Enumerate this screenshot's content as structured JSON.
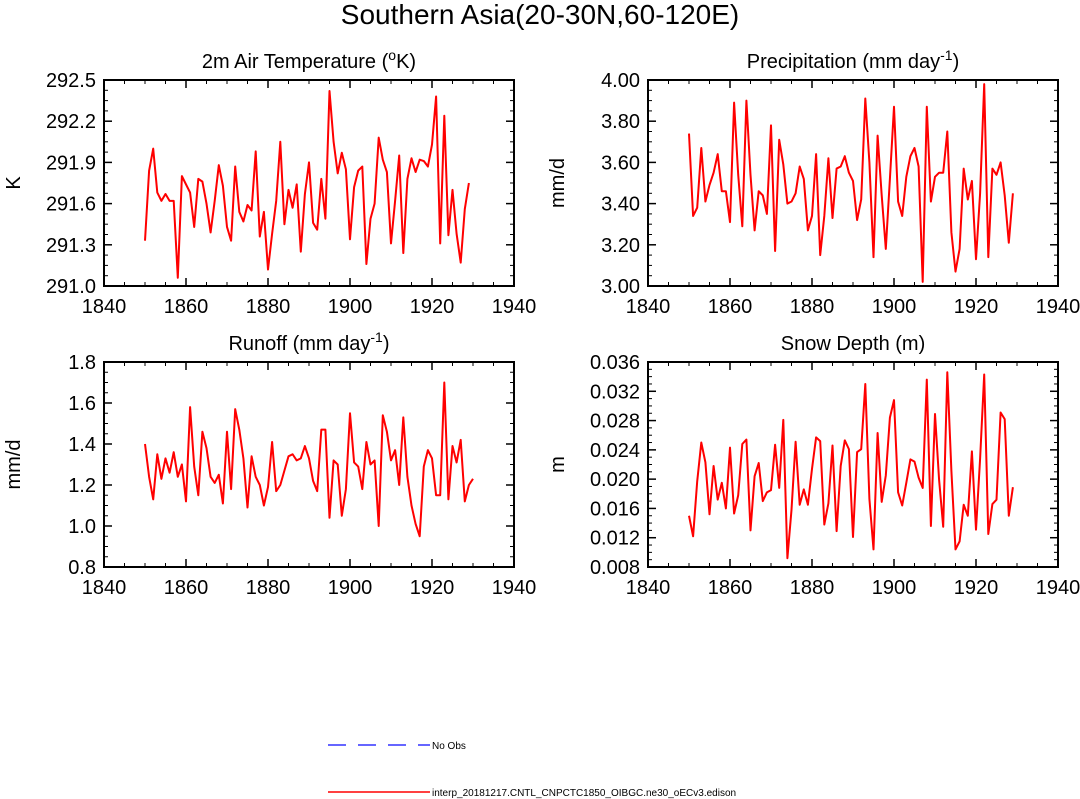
{
  "main_title": "Southern Asia(20-30N,60-120E)",
  "legend": [
    {
      "label": "No Obs",
      "color": "#3333ff",
      "dash": "dashed"
    },
    {
      "label": "interp_20181217.CNTL_CNPCTC1850_OIBGC.ne30_oECv3.edison",
      "color": "#ff0000",
      "dash": "solid"
    }
  ],
  "chart_data": [
    {
      "type": "line",
      "title": "2m Air Temperature (",
      "title_sup": "o",
      "title_tail": "K)",
      "ylabel": "K",
      "xlim": [
        1840,
        1940
      ],
      "xticks": [
        1840,
        1860,
        1880,
        1900,
        1920,
        1940
      ],
      "ylim": [
        291.0,
        292.5
      ],
      "yticks": [
        "291.0",
        "291.3",
        "291.6",
        "291.9",
        "292.2",
        "292.5"
      ],
      "x_start": 1850,
      "series": [
        {
          "name": "model",
          "color": "#ff0000",
          "values": [
            291.33,
            291.84,
            292.0,
            291.68,
            291.62,
            291.67,
            291.62,
            291.62,
            291.06,
            291.8,
            291.74,
            291.68,
            291.43,
            291.78,
            291.76,
            291.6,
            291.39,
            291.62,
            291.88,
            291.73,
            291.43,
            291.33,
            291.87,
            291.54,
            291.47,
            291.59,
            291.55,
            291.98,
            291.36,
            291.54,
            291.12,
            291.38,
            291.62,
            292.05,
            291.45,
            291.7,
            291.57,
            291.74,
            291.25,
            291.67,
            291.9,
            291.46,
            291.41,
            291.78,
            291.49,
            292.42,
            292.05,
            291.82,
            291.97,
            291.85,
            291.34,
            291.72,
            291.84,
            291.87,
            291.16,
            291.49,
            291.6,
            292.08,
            291.92,
            291.83,
            291.31,
            291.62,
            291.95,
            291.24,
            291.78,
            291.93,
            291.83,
            291.92,
            291.91,
            291.87,
            292.03,
            292.38,
            291.31,
            292.24,
            291.37,
            291.7,
            291.38,
            291.17,
            291.56,
            291.75
          ]
        }
      ]
    },
    {
      "type": "line",
      "title": "Precipitation (mm day",
      "title_sup": "-1",
      "title_tail": ")",
      "ylabel": "mm/d",
      "xlim": [
        1840,
        1940
      ],
      "xticks": [
        1840,
        1860,
        1880,
        1900,
        1920,
        1940
      ],
      "ylim": [
        3.0,
        4.0
      ],
      "yticks": [
        "3.00",
        "3.20",
        "3.40",
        "3.60",
        "3.80",
        "4.00"
      ],
      "x_start": 1850,
      "series": [
        {
          "name": "model",
          "color": "#ff0000",
          "values": [
            3.74,
            3.34,
            3.38,
            3.67,
            3.41,
            3.49,
            3.55,
            3.64,
            3.46,
            3.46,
            3.31,
            3.89,
            3.54,
            3.29,
            3.9,
            3.54,
            3.27,
            3.46,
            3.44,
            3.35,
            3.78,
            3.17,
            3.71,
            3.59,
            3.4,
            3.41,
            3.45,
            3.58,
            3.52,
            3.27,
            3.34,
            3.64,
            3.15,
            3.34,
            3.62,
            3.33,
            3.57,
            3.58,
            3.63,
            3.55,
            3.51,
            3.32,
            3.42,
            3.91,
            3.6,
            3.14,
            3.73,
            3.44,
            3.18,
            3.52,
            3.87,
            3.41,
            3.34,
            3.53,
            3.63,
            3.67,
            3.58,
            3.02,
            3.87,
            3.41,
            3.53,
            3.55,
            3.55,
            3.75,
            3.26,
            3.07,
            3.18,
            3.57,
            3.42,
            3.51,
            3.13,
            3.45,
            3.98,
            3.14,
            3.57,
            3.54,
            3.6,
            3.44,
            3.21,
            3.45
          ]
        }
      ]
    },
    {
      "type": "line",
      "title": "Runoff (mm day",
      "title_sup": "-1",
      "title_tail": ")",
      "ylabel": "mm/d",
      "xlim": [
        1840,
        1940
      ],
      "xticks": [
        1840,
        1860,
        1880,
        1900,
        1920,
        1940
      ],
      "ylim": [
        0.8,
        1.8
      ],
      "yticks": [
        "0.8",
        "1.0",
        "1.2",
        "1.4",
        "1.6",
        "1.8"
      ],
      "x_start": 1850,
      "series": [
        {
          "name": "model",
          "color": "#ff0000",
          "values": [
            1.4,
            1.24,
            1.13,
            1.35,
            1.23,
            1.33,
            1.26,
            1.36,
            1.24,
            1.3,
            1.12,
            1.58,
            1.29,
            1.15,
            1.46,
            1.38,
            1.24,
            1.21,
            1.25,
            1.11,
            1.46,
            1.18,
            1.57,
            1.47,
            1.33,
            1.09,
            1.34,
            1.24,
            1.2,
            1.1,
            1.19,
            1.41,
            1.17,
            1.2,
            1.27,
            1.34,
            1.35,
            1.32,
            1.33,
            1.39,
            1.33,
            1.22,
            1.17,
            1.47,
            1.47,
            1.04,
            1.32,
            1.3,
            1.05,
            1.18,
            1.55,
            1.31,
            1.29,
            1.18,
            1.41,
            1.3,
            1.32,
            1.0,
            1.54,
            1.46,
            1.32,
            1.37,
            1.2,
            1.53,
            1.24,
            1.1,
            1.01,
            0.95,
            1.29,
            1.37,
            1.33,
            1.15,
            1.15,
            1.7,
            1.13,
            1.39,
            1.31,
            1.42,
            1.12,
            1.2,
            1.23
          ]
        }
      ]
    },
    {
      "type": "line",
      "title": "Snow Depth (m)",
      "title_sup": "",
      "title_tail": "",
      "ylabel": "m",
      "xlim": [
        1840,
        1940
      ],
      "xticks": [
        1840,
        1860,
        1880,
        1900,
        1920,
        1940
      ],
      "ylim": [
        0.008,
        0.036
      ],
      "yticks": [
        "0.008",
        "0.012",
        "0.016",
        "0.020",
        "0.024",
        "0.028",
        "0.032",
        "0.036"
      ],
      "x_start": 1850,
      "series": [
        {
          "name": "model",
          "color": "#ff0000",
          "values": [
            0.015,
            0.0122,
            0.0197,
            0.025,
            0.0223,
            0.0152,
            0.0218,
            0.0172,
            0.0195,
            0.016,
            0.0243,
            0.0153,
            0.0178,
            0.0248,
            0.0254,
            0.013,
            0.0204,
            0.0222,
            0.017,
            0.0182,
            0.0185,
            0.0247,
            0.0188,
            0.0281,
            0.0092,
            0.0158,
            0.0251,
            0.0165,
            0.0186,
            0.0165,
            0.0214,
            0.0257,
            0.0252,
            0.0138,
            0.0167,
            0.0246,
            0.0129,
            0.0218,
            0.0253,
            0.0241,
            0.0121,
            0.0237,
            0.0241,
            0.033,
            0.0173,
            0.0104,
            0.0263,
            0.0169,
            0.0205,
            0.0284,
            0.0308,
            0.0182,
            0.0164,
            0.0195,
            0.0227,
            0.0224,
            0.0202,
            0.0188,
            0.0336,
            0.0136,
            0.0289,
            0.0199,
            0.0135,
            0.0346,
            0.0211,
            0.0104,
            0.0115,
            0.0165,
            0.015,
            0.0238,
            0.0131,
            0.0228,
            0.0343,
            0.0125,
            0.0166,
            0.0172,
            0.0291,
            0.0282,
            0.015,
            0.0189
          ]
        }
      ]
    }
  ]
}
